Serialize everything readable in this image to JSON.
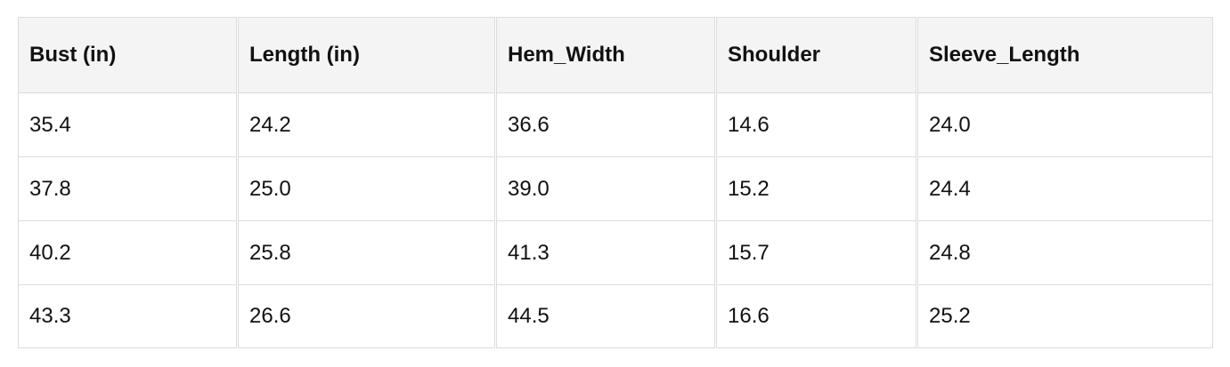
{
  "table": {
    "headers": [
      "Bust (in)",
      "Length (in)",
      "Hem_Width",
      "Shoulder",
      "Sleeve_Length"
    ],
    "rows": [
      [
        "35.4",
        "24.2",
        "36.6",
        "14.6",
        "24.0"
      ],
      [
        "37.8",
        "25.0",
        "39.0",
        "15.2",
        "24.4"
      ],
      [
        "40.2",
        "25.8",
        "41.3",
        "15.7",
        "24.8"
      ],
      [
        "43.3",
        "26.6",
        "44.5",
        "16.6",
        "25.2"
      ]
    ]
  }
}
